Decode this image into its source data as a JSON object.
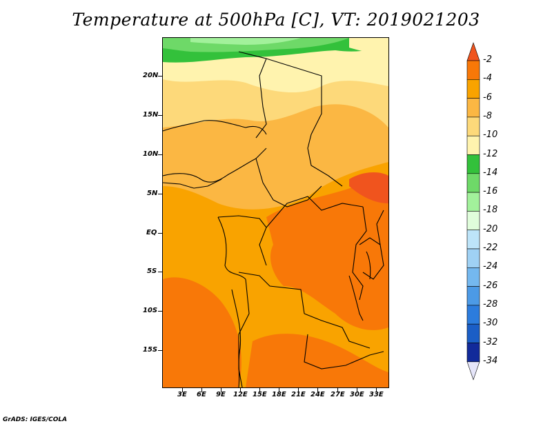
{
  "title": "Temperature at 500hPa [C], VT: 2019021203",
  "footer": "GrADS: IGES/COLA",
  "map": {
    "lat_ticks": [
      "20N",
      "15N",
      "10N",
      "5N",
      "EQ",
      "5S",
      "10S",
      "15S"
    ],
    "lon_ticks": [
      "3E",
      "6E",
      "9E",
      "12E",
      "15E",
      "18E",
      "21E",
      "24E",
      "27E",
      "30E",
      "33E"
    ]
  },
  "colorbar": {
    "labels": [
      "-2",
      "-4",
      "-6",
      "-8",
      "-10",
      "-12",
      "-14",
      "-16",
      "-18",
      "-20",
      "-22",
      "-24",
      "-26",
      "-28",
      "-30",
      "-32",
      "-34"
    ],
    "colors": [
      "#f0541e",
      "#f87808",
      "#f9a300",
      "#fbb743",
      "#fdd97a",
      "#fff3ae",
      "#33c13b",
      "#6ed968",
      "#a2f19b",
      "#e0fddb",
      "#bde4f9",
      "#9fd1f4",
      "#74b8ef",
      "#4c9ae6",
      "#2c7cdd",
      "#1b5ec6",
      "#122a9a",
      "#e6e6fa"
    ]
  }
}
